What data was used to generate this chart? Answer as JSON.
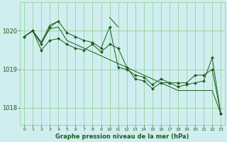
{
  "title": "Graphe pression niveau de la mer (hPa)",
  "background_color": "#d0eef0",
  "grid_color": "#88cc88",
  "line_color": "#1a5c1a",
  "x_ticks": [
    0,
    1,
    2,
    3,
    4,
    5,
    6,
    7,
    8,
    9,
    10,
    11,
    12,
    13,
    14,
    15,
    16,
    17,
    18,
    19,
    20,
    21,
    22,
    23
  ],
  "y_ticks": [
    1018,
    1019,
    1020
  ],
  "ylim": [
    1017.55,
    1020.75
  ],
  "xlim": [
    -0.5,
    23.5
  ],
  "lines": [
    [
      1019.85,
      1020.0,
      1019.7,
      1020.15,
      1020.25,
      null,
      null,
      null,
      null,
      null,
      1020.35,
      1020.1,
      null,
      null,
      null,
      null,
      null,
      null,
      null,
      null,
      null,
      null,
      null,
      1017.85
    ],
    [
      1019.85,
      1020.0,
      1019.65,
      1020.1,
      1020.25,
      1019.95,
      1019.85,
      1019.75,
      1019.7,
      1019.55,
      1020.1,
      1019.05,
      1019.0,
      1018.85,
      1018.8,
      1018.6,
      1018.75,
      1018.65,
      1018.65,
      1018.65,
      1018.85,
      1018.85,
      1019.0,
      1017.85
    ],
    [
      1019.85,
      1020.0,
      1019.5,
      1019.75,
      1019.8,
      1019.65,
      1019.55,
      1019.5,
      1019.65,
      1019.45,
      1019.65,
      1019.55,
      1019.05,
      1018.75,
      1018.7,
      1018.5,
      1018.65,
      1018.65,
      1018.55,
      1018.6,
      1018.65,
      1018.7,
      1019.3,
      1017.85
    ],
    [
      1019.85,
      1020.0,
      1019.7,
      1020.05,
      1020.1,
      1019.75,
      1019.65,
      1019.55,
      1019.45,
      1019.35,
      1019.25,
      1019.15,
      1019.05,
      1018.95,
      1018.85,
      1018.75,
      1018.65,
      1018.55,
      1018.45,
      1018.45,
      1018.45,
      1018.45,
      1018.45,
      1017.85
    ]
  ],
  "has_markers": [
    false,
    true,
    true,
    false
  ]
}
